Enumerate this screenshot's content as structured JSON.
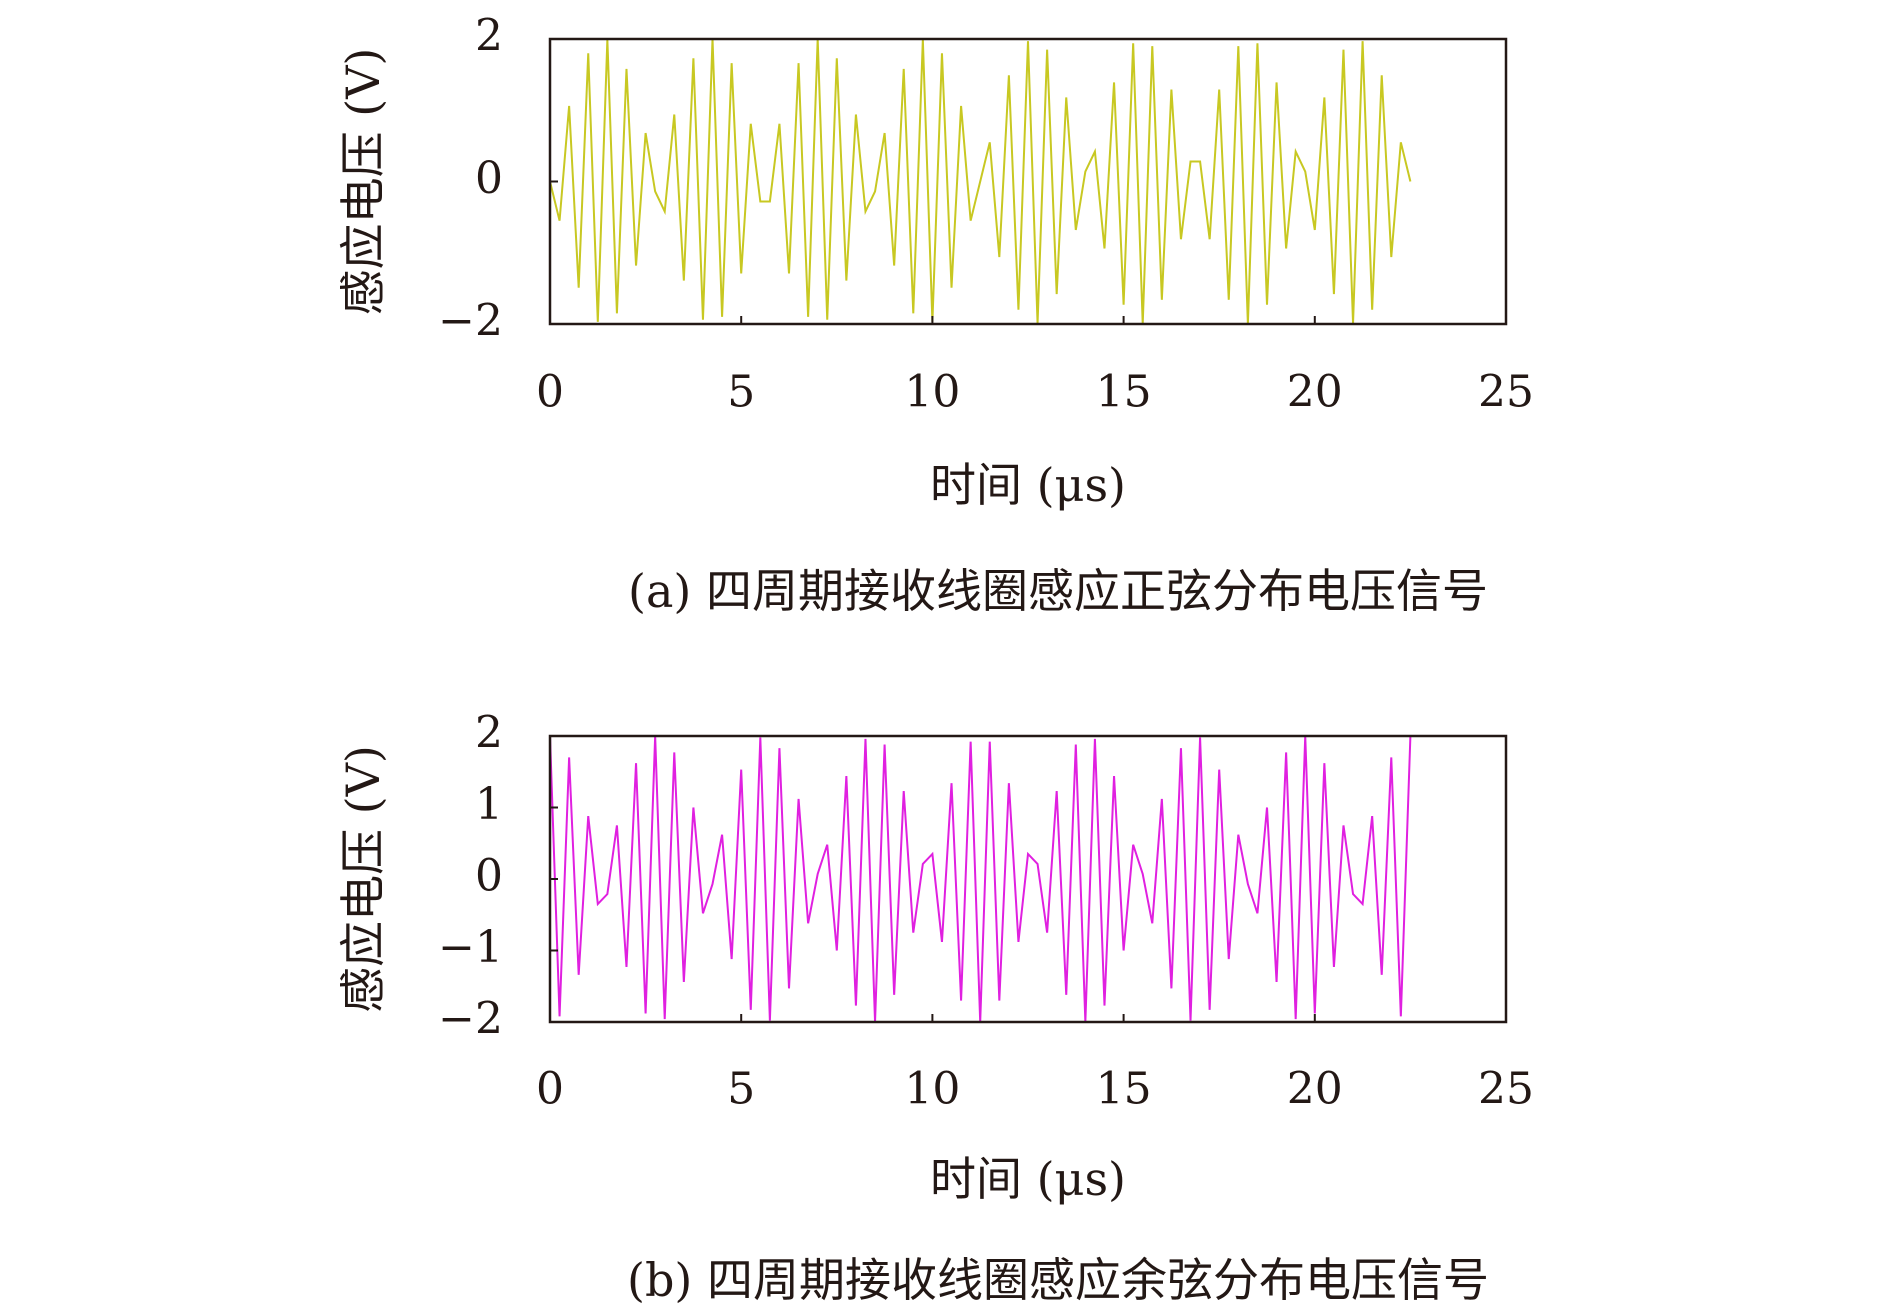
{
  "chart_data": [
    {
      "type": "line",
      "ylabel": "感应电压 (V)",
      "xlabel": "时间 (μs)",
      "caption": "(a) 四周期接收线圈感应正弦分布电压信号",
      "x": [
        0,
        0.25,
        0.5,
        0.75,
        1,
        1.25,
        1.5,
        1.75,
        2,
        2.25,
        2.5,
        2.75,
        3,
        3.25,
        3.5,
        3.75,
        4,
        4.25,
        4.5,
        4.75,
        5,
        5.25,
        5.5,
        5.75,
        6,
        6.25,
        6.5,
        6.75,
        7,
        7.25,
        7.5,
        7.75,
        8,
        8.25,
        8.5,
        8.75,
        9,
        9.25,
        9.5,
        9.75,
        10,
        10.25,
        10.5,
        10.75,
        11,
        11.25,
        11.5,
        11.75,
        12,
        12.25,
        12.5,
        12.75,
        13,
        13.25,
        13.5,
        13.75,
        14,
        14.25,
        14.5,
        14.75,
        15,
        15.25,
        15.5,
        15.75,
        16,
        16.25,
        16.5,
        16.75,
        17,
        17.25,
        17.5,
        17.75,
        18,
        18.25,
        18.5,
        18.75,
        19,
        19.25,
        19.5,
        19.75,
        20,
        20.25,
        20.5,
        20.75,
        21,
        21.25,
        21.5,
        21.75,
        22,
        22.25,
        22.5
      ],
      "series": [
        {
          "color": "#c8c822",
          "values": [
            0,
            -0.55,
            1.06,
            -1.49,
            1.8,
            -1.97,
            1.99,
            -1.85,
            1.58,
            -1.18,
            0.68,
            -0.14,
            -0.42,
            0.94,
            -1.39,
            1.73,
            -1.94,
            2,
            -1.9,
            1.66,
            -1.29,
            0.81,
            -0.28,
            -0.28,
            0.81,
            -1.29,
            1.66,
            -1.9,
            2,
            -1.94,
            1.73,
            -1.39,
            0.94,
            -0.42,
            -0.14,
            0.68,
            -1.18,
            1.58,
            -1.85,
            1.99,
            -1.97,
            1.8,
            -1.49,
            1.06,
            -0.55,
            0,
            0.55,
            -1.06,
            1.49,
            -1.8,
            1.97,
            -1.99,
            1.85,
            -1.58,
            1.18,
            -0.68,
            0.14,
            0.42,
            -0.94,
            1.39,
            -1.73,
            1.94,
            -2,
            1.9,
            -1.66,
            1.29,
            -0.81,
            0.28,
            0.28,
            -0.81,
            1.29,
            -1.66,
            1.9,
            -2,
            1.94,
            -1.73,
            1.39,
            -0.94,
            0.42,
            0.14,
            -0.68,
            1.18,
            -1.58,
            1.85,
            -1.99,
            1.97,
            -1.8,
            1.49,
            -1.06,
            0.55,
            0
          ]
        }
      ],
      "xlim": [
        0,
        25
      ],
      "xticks": [
        0,
        5,
        10,
        15,
        20,
        25
      ],
      "ylim": [
        -2,
        2
      ],
      "yticks": [
        {
          "value": -2,
          "label": "−2"
        },
        0,
        2
      ]
    },
    {
      "type": "line",
      "ylabel": "感应电压 (V)",
      "xlabel": "时间 (μs)",
      "caption": "(b) 四周期接收线圈感应余弦分布电压信号",
      "x": [
        0,
        0.25,
        0.5,
        0.75,
        1,
        1.25,
        1.5,
        1.75,
        2,
        2.25,
        2.5,
        2.75,
        3,
        3.25,
        3.5,
        3.75,
        4,
        4.25,
        4.5,
        4.75,
        5,
        5.25,
        5.5,
        5.75,
        6,
        6.25,
        6.5,
        6.75,
        7,
        7.25,
        7.5,
        7.75,
        8,
        8.25,
        8.5,
        8.75,
        9,
        9.25,
        9.5,
        9.75,
        10,
        10.25,
        10.5,
        10.75,
        11,
        11.25,
        11.5,
        11.75,
        12,
        12.25,
        12.5,
        12.75,
        13,
        13.25,
        13.5,
        13.75,
        14,
        14.25,
        14.5,
        14.75,
        15,
        15.25,
        15.5,
        15.75,
        16,
        16.25,
        16.5,
        16.75,
        17,
        17.25,
        17.5,
        17.75,
        18,
        18.25,
        18.5,
        18.75,
        19,
        19.25,
        19.5,
        19.75,
        20,
        20.25,
        20.5,
        20.75,
        21,
        21.25,
        21.5,
        21.75,
        22,
        22.25,
        22.5
      ],
      "series": [
        {
          "color": "#e020e0",
          "values": [
            2,
            -1.92,
            1.7,
            -1.34,
            0.88,
            -0.35,
            -0.21,
            0.75,
            -1.23,
            1.62,
            -1.88,
            2,
            -1.96,
            1.77,
            -1.44,
            1,
            -0.48,
            -0.07,
            0.62,
            -1.12,
            1.53,
            -1.83,
            1.98,
            -1.98,
            1.83,
            -1.53,
            1.12,
            -0.62,
            0.07,
            0.48,
            -1,
            1.44,
            -1.77,
            1.96,
            -2,
            1.88,
            -1.62,
            1.23,
            -0.75,
            0.21,
            0.35,
            -0.88,
            1.34,
            -1.7,
            1.92,
            -2,
            1.92,
            -1.7,
            1.34,
            -0.88,
            0.35,
            0.21,
            -0.75,
            1.23,
            -1.62,
            1.88,
            -2,
            1.96,
            -1.77,
            1.44,
            -1,
            0.48,
            0.07,
            -0.62,
            1.12,
            -1.53,
            1.83,
            -1.98,
            1.98,
            -1.83,
            1.53,
            -1.12,
            0.62,
            -0.07,
            -0.48,
            1,
            -1.44,
            1.77,
            -1.96,
            2,
            -1.88,
            1.62,
            -1.23,
            0.75,
            -0.21,
            -0.35,
            0.88,
            -1.34,
            1.7,
            -1.92,
            2
          ]
        }
      ],
      "xlim": [
        0,
        25
      ],
      "xticks": [
        0,
        5,
        10,
        15,
        20,
        25
      ],
      "ylim": [
        -2,
        2
      ],
      "yticks": [
        {
          "value": -2,
          "label": "−2"
        },
        {
          "value": -1,
          "label": "−1"
        },
        0,
        1,
        2
      ]
    }
  ]
}
